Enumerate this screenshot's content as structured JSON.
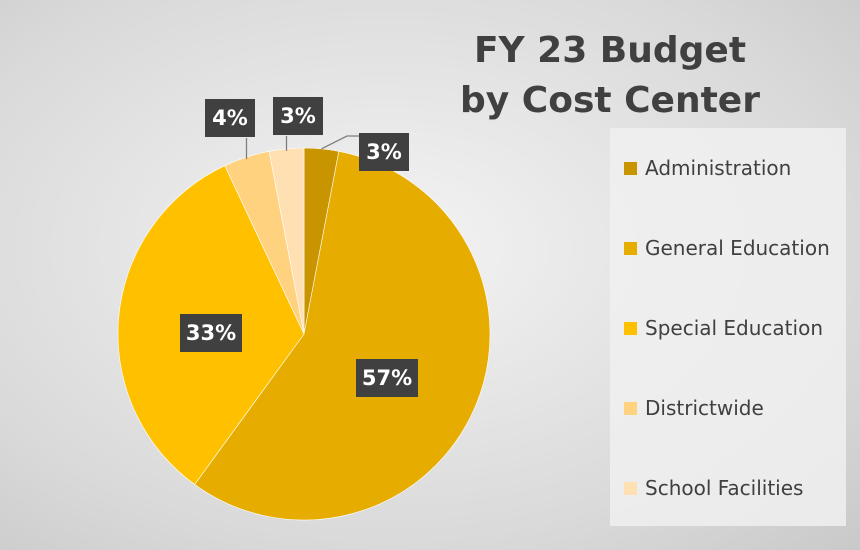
{
  "chart_data": {
    "type": "pie",
    "title_lines": [
      "FY 23 Budget",
      "by Cost Center"
    ],
    "categories": [
      "Administration",
      "General Education",
      "Special Education",
      "Districtwide",
      "School Facilities"
    ],
    "values": [
      3,
      57,
      33,
      4,
      3
    ],
    "value_labels": [
      "3%",
      "57%",
      "33%",
      "4%",
      "3%"
    ],
    "colors": [
      "#c89500",
      "#e6ac00",
      "#ffc000",
      "#ffd280",
      "#ffe0b3"
    ],
    "legend": {
      "position": "right"
    }
  }
}
